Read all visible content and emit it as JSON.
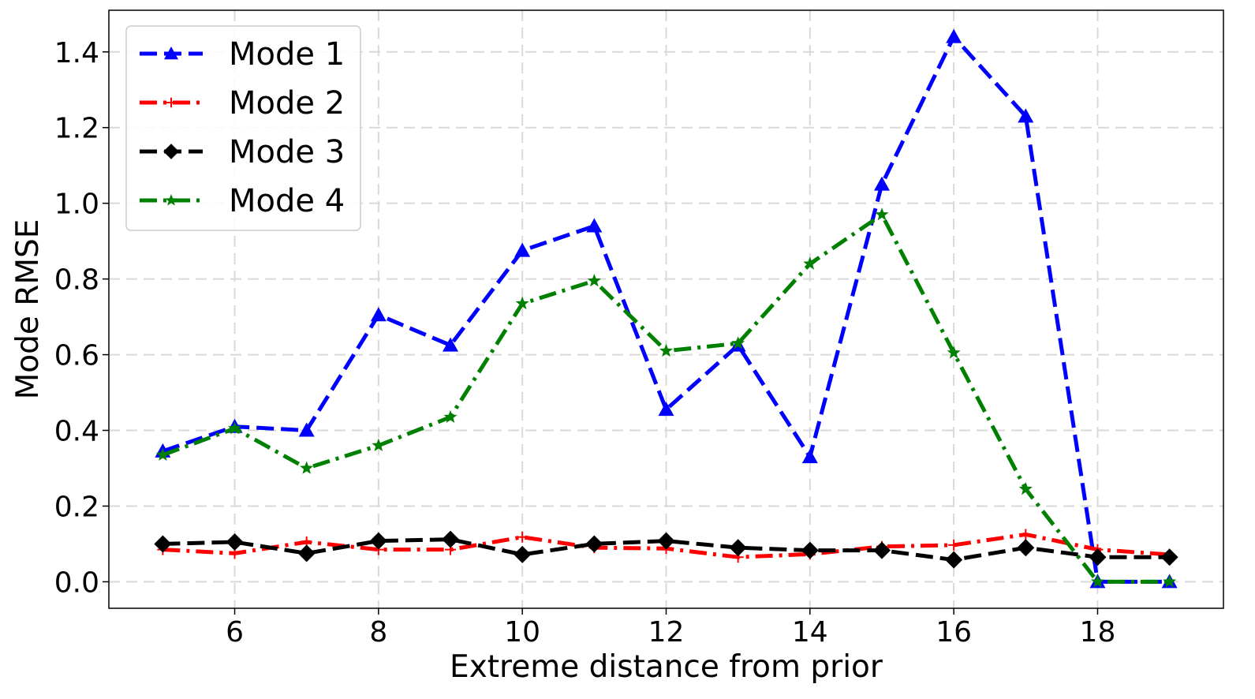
{
  "chart_data": {
    "type": "line",
    "xlabel": "Extreme distance from prior",
    "ylabel": "Mode RMSE",
    "xlim": [
      4.25,
      19.75
    ],
    "ylim": [
      -0.07,
      1.51
    ],
    "xticks": [
      6,
      8,
      10,
      12,
      14,
      16,
      18
    ],
    "yticks": [
      0.0,
      0.2,
      0.4,
      0.6,
      0.8,
      1.0,
      1.2,
      1.4
    ],
    "xtick_labels": [
      "6",
      "8",
      "10",
      "12",
      "14",
      "16",
      "18"
    ],
    "ytick_labels": [
      "0.0",
      "0.2",
      "0.4",
      "0.6",
      "0.8",
      "1.0",
      "1.2",
      "1.4"
    ],
    "grid": true,
    "legend_position": "top-left",
    "x": [
      5,
      6,
      7,
      8,
      9,
      10,
      11,
      12,
      13,
      14,
      15,
      16,
      17,
      18,
      19
    ],
    "series": [
      {
        "name": "Mode 1",
        "color": "#0000ff",
        "dash": "dashed",
        "marker": "triangle",
        "values": [
          0.345,
          0.41,
          0.4,
          0.705,
          0.625,
          0.875,
          0.94,
          0.455,
          0.625,
          0.33,
          1.05,
          1.44,
          1.23,
          0.0,
          0.0
        ]
      },
      {
        "name": "Mode 2",
        "color": "#ff0000",
        "dash": "dashdot",
        "marker": "plus",
        "values": [
          0.085,
          0.075,
          0.105,
          0.085,
          0.085,
          0.118,
          0.09,
          0.088,
          0.065,
          0.073,
          0.093,
          0.097,
          0.125,
          0.085,
          0.072
        ]
      },
      {
        "name": "Mode 3",
        "color": "#000000",
        "dash": "dashed",
        "marker": "diamond",
        "values": [
          0.1,
          0.105,
          0.075,
          0.108,
          0.112,
          0.072,
          0.1,
          0.108,
          0.09,
          0.083,
          0.083,
          0.058,
          0.09,
          0.065,
          0.065
        ]
      },
      {
        "name": "Mode 4",
        "color": "#008000",
        "dash": "dashdot",
        "marker": "star",
        "values": [
          0.335,
          0.405,
          0.3,
          0.36,
          0.435,
          0.735,
          0.795,
          0.61,
          0.63,
          0.84,
          0.97,
          0.605,
          0.245,
          0.0,
          0.0
        ]
      }
    ]
  }
}
